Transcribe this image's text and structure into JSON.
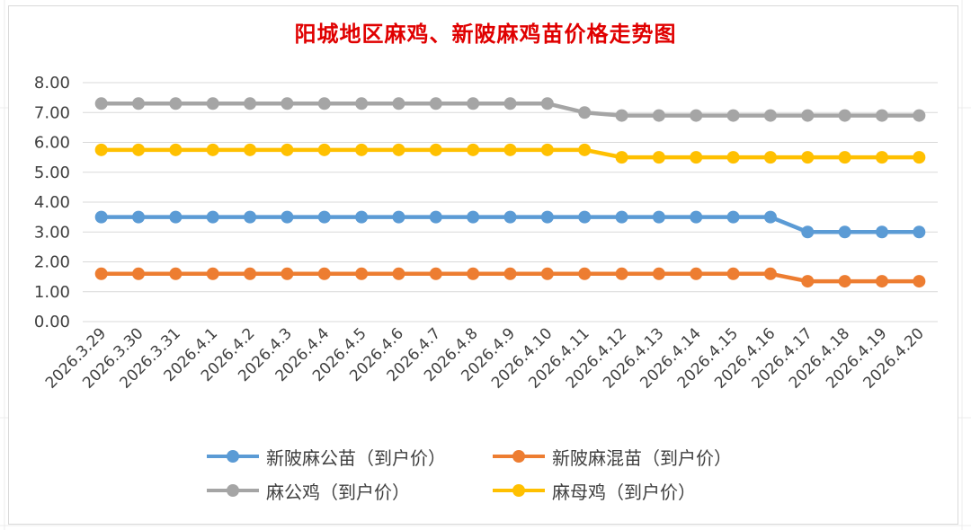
{
  "chart_data": {
    "type": "line",
    "title": "阳城地区麻鸡、新陂麻鸡苗价格走势图",
    "categories": [
      "2026.3.29",
      "2026.3.30",
      "2026.3.31",
      "2026.4.1",
      "2026.4.2",
      "2026.4.3",
      "2026.4.4",
      "2026.4.5",
      "2026.4.6",
      "2026.4.7",
      "2026.4.8",
      "2026.4.9",
      "2026.4.10",
      "2026.4.11",
      "2026.4.12",
      "2026.4.13",
      "2026.4.14",
      "2026.4.15",
      "2026.4.16",
      "2026.4.17",
      "2026.4.18",
      "2026.4.19",
      "2026.4.20"
    ],
    "y_ticks": [
      "8.00",
      "7.00",
      "6.00",
      "5.00",
      "4.00",
      "3.00",
      "2.00",
      "1.00",
      "0.00"
    ],
    "ylim": [
      0,
      8
    ],
    "grid": true,
    "legend_position": "bottom",
    "series": [
      {
        "name": "新陂麻公苗（到户价）",
        "color": "#5b9bd5",
        "values": [
          3.5,
          3.5,
          3.5,
          3.5,
          3.5,
          3.5,
          3.5,
          3.5,
          3.5,
          3.5,
          3.5,
          3.5,
          3.5,
          3.5,
          3.5,
          3.5,
          3.5,
          3.5,
          3.5,
          3.0,
          3.0,
          3.0,
          3.0
        ]
      },
      {
        "name": "新陂麻混苗（到户价）",
        "color": "#ed7d31",
        "values": [
          1.6,
          1.6,
          1.6,
          1.6,
          1.6,
          1.6,
          1.6,
          1.6,
          1.6,
          1.6,
          1.6,
          1.6,
          1.6,
          1.6,
          1.6,
          1.6,
          1.6,
          1.6,
          1.6,
          1.35,
          1.35,
          1.35,
          1.35
        ]
      },
      {
        "name": "麻公鸡（到户价）",
        "color": "#a5a5a5",
        "values": [
          7.3,
          7.3,
          7.3,
          7.3,
          7.3,
          7.3,
          7.3,
          7.3,
          7.3,
          7.3,
          7.3,
          7.3,
          7.3,
          7.0,
          6.9,
          6.9,
          6.9,
          6.9,
          6.9,
          6.9,
          6.9,
          6.9,
          6.9
        ]
      },
      {
        "name": "麻母鸡（到户价）",
        "color": "#ffc000",
        "values": [
          5.75,
          5.75,
          5.75,
          5.75,
          5.75,
          5.75,
          5.75,
          5.75,
          5.75,
          5.75,
          5.75,
          5.75,
          5.75,
          5.75,
          5.5,
          5.5,
          5.5,
          5.5,
          5.5,
          5.5,
          5.5,
          5.5,
          5.5
        ]
      }
    ]
  }
}
